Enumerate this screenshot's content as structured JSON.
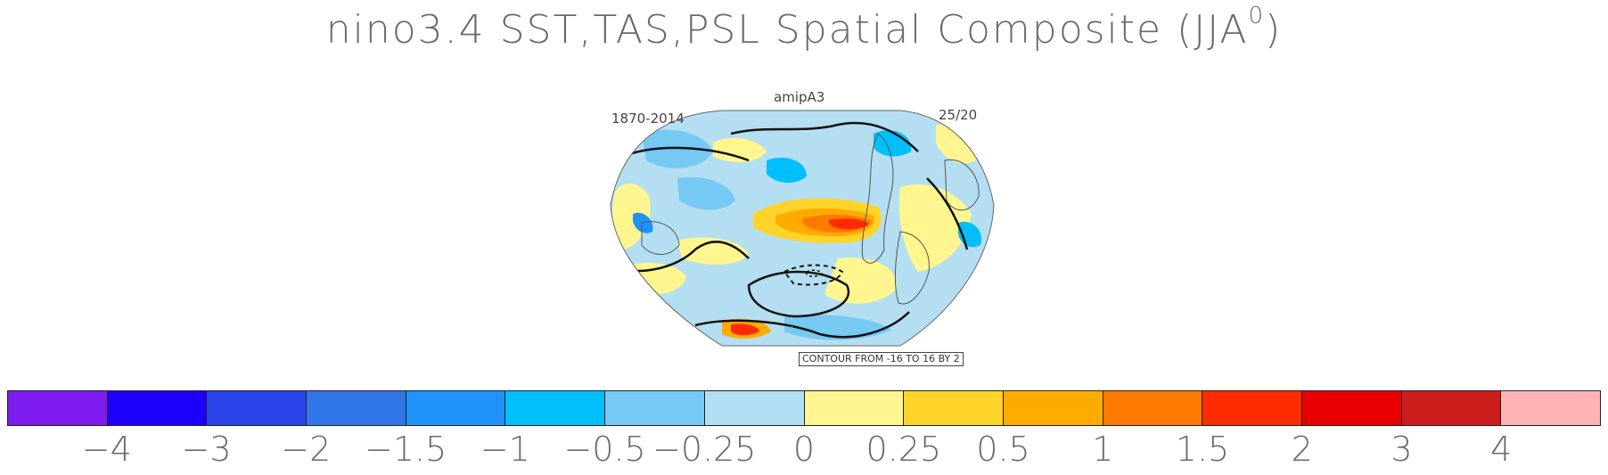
{
  "title": {
    "main": "nino3.4 SST,TAS,PSL Spatial Composite (JJA",
    "superscript": "0",
    "close": ")"
  },
  "panel": {
    "name": "amipA3",
    "period": "1870-2014",
    "ratio": "25/20",
    "contour_note": "CONTOUR FROM -16 TO 16 BY 2"
  },
  "map": {
    "projection": "Robinson",
    "center_longitude": "Pacific-centered",
    "ocean_color": "#b4def2",
    "land_outline_color": "#555555",
    "contour_color": "#111111"
  },
  "colorbar": {
    "colors": [
      "#7e1bef",
      "#1d00fb",
      "#2a44ea",
      "#3176e6",
      "#1e93fc",
      "#00bffb",
      "#76c9f3",
      "#b2dff4",
      "#fff68f",
      "#ffd42a",
      "#ffab00",
      "#ff7a00",
      "#ff2b00",
      "#e80000",
      "#cc1d1d",
      "#ffb3b5"
    ],
    "tick_labels": [
      "-4",
      "-3",
      "-2",
      "-1.5",
      "-1",
      "-0.5",
      "-0.25",
      "0",
      "0.25",
      "0.5",
      "1",
      "1.5",
      "2",
      "3",
      "4"
    ]
  }
}
